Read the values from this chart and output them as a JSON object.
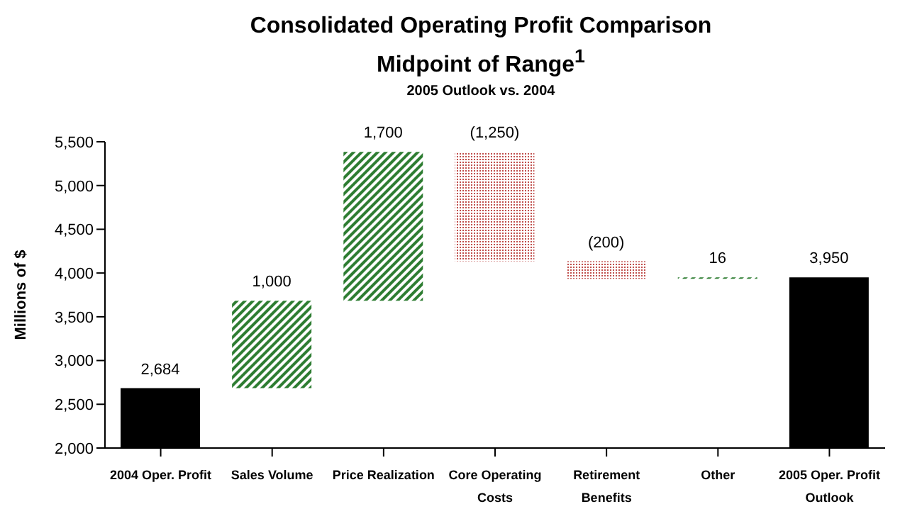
{
  "chart_data": {
    "type": "bar",
    "title": "Consolidated Operating Profit Comparison\nMidpoint of Range$^{1}$",
    "subtitle": "2005 Outlook vs. 2004",
    "ylabel": "Millions of $",
    "categories": [
      "2004 Oper. Profit",
      "Sales Volume",
      "Price Realization",
      "Core Operating Costs",
      "Retirement Benefits",
      "Other",
      "2005 Oper. Profit Outlook"
    ],
    "values": [
      2684,
      1000,
      1700,
      -1250,
      -200,
      16,
      3950
    ],
    "base": [
      null,
      2684,
      3684,
      5384,
      4134,
      3934,
      null
    ],
    "colors": [
      "#000000",
      "#2e7d32",
      "#2e7d32",
      "#c0504d",
      "#c0504d",
      "#2e7d32",
      "#000000"
    ],
    "value_labels": [
      "2,684",
      "1,000",
      "1,700",
      "(1,250)",
      "(200)",
      "16",
      "3,950"
    ],
    "ylim": [
      2000,
      5500
    ],
    "yticks": [
      {
        "value": 2000,
        "label": "2,000"
      },
      {
        "value": 2500,
        "label": "2,500"
      },
      {
        "value": 3000,
        "label": "3,000"
      },
      {
        "value": 3500,
        "label": "3,500"
      },
      {
        "value": 4000,
        "label": "4,000"
      },
      {
        "value": 4500,
        "label": "4,500"
      },
      {
        "value": 5000,
        "label": "5,000"
      },
      {
        "value": 5500,
        "label": "5,500"
      }
    ],
    "grid": false
  }
}
